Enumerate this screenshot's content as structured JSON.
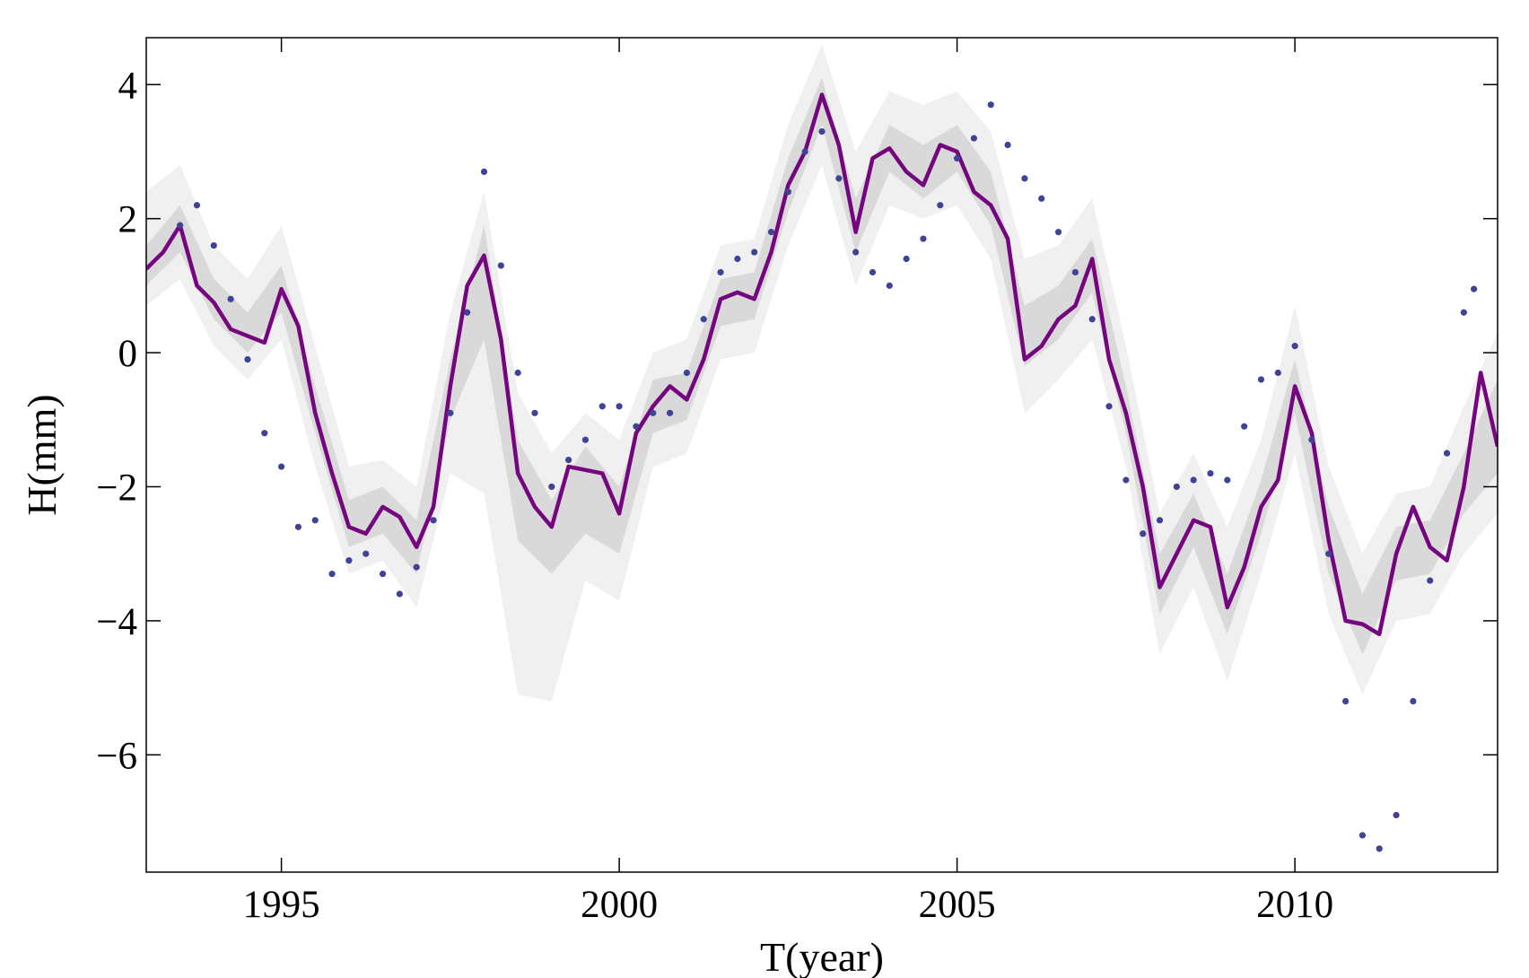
{
  "chart_data": {
    "type": "line",
    "xlabel": "T(year)",
    "ylabel": "H(mm)",
    "xlim": [
      1993,
      2013
    ],
    "ylim": [
      -7.75,
      4.7
    ],
    "xticks": [
      1995,
      2000,
      2005,
      2010
    ],
    "yticks": [
      {
        "value": 4,
        "label": "4"
      },
      {
        "value": 2,
        "label": "2"
      },
      0,
      {
        "value": -2,
        "label": "−2"
      },
      {
        "value": -4,
        "label": "−4"
      },
      {
        "value": -6,
        "label": "−6"
      }
    ],
    "bands": {
      "x": [
        1993,
        1993.5,
        1994,
        1994.5,
        1995,
        1995.5,
        1996,
        1996.5,
        1997,
        1997.5,
        1998,
        1998.5,
        1999,
        1999.5,
        2000,
        2000.5,
        2001,
        2001.5,
        2002,
        2002.5,
        2003,
        2003.5,
        2004,
        2004.5,
        2005,
        2005.5,
        2006,
        2006.5,
        2007,
        2007.5,
        2008,
        2008.5,
        2009,
        2009.5,
        2010,
        2010.5,
        2011,
        2011.5,
        2012,
        2012.5,
        2013
      ],
      "outer": {
        "color": "#f0f0f0",
        "lower": [
          0.7,
          1.1,
          0.1,
          -0.4,
          0.2,
          -1.7,
          -3.3,
          -3.1,
          -3.8,
          -1.8,
          -2.1,
          -5.1,
          -5.2,
          -3.4,
          -3.7,
          -1.7,
          -1.5,
          -0.1,
          0.0,
          1.6,
          2.8,
          1.0,
          2.2,
          2.0,
          2.2,
          1.4,
          -0.9,
          -0.4,
          0.2,
          -1.7,
          -4.5,
          -3.5,
          -4.9,
          -3.3,
          -1.5,
          -3.9,
          -5.1,
          -4.0,
          -3.9,
          -3.0,
          -2.4
        ],
        "upper": [
          2.4,
          2.8,
          1.6,
          1.1,
          1.9,
          0.1,
          -1.7,
          -1.6,
          -2.0,
          0.6,
          2.4,
          -0.6,
          -1.5,
          -0.9,
          -1.3,
          0.0,
          0.2,
          1.6,
          1.7,
          3.4,
          4.6,
          3.0,
          3.9,
          3.7,
          3.9,
          3.3,
          1.4,
          1.6,
          2.3,
          0.1,
          -2.4,
          -1.5,
          -2.6,
          -1.3,
          0.7,
          -1.7,
          -3.0,
          -2.1,
          -2.0,
          -0.8,
          0.3
        ]
      },
      "inner": {
        "color": "#d9d9d9",
        "lower": [
          1.0,
          1.5,
          0.5,
          0.0,
          0.6,
          -1.2,
          -2.9,
          -2.7,
          -3.3,
          -1.0,
          0.2,
          -2.8,
          -3.3,
          -2.7,
          -3.0,
          -1.2,
          -1.0,
          0.4,
          0.5,
          2.1,
          3.4,
          1.5,
          2.7,
          2.3,
          2.7,
          1.9,
          -0.2,
          0.2,
          0.9,
          -1.2,
          -3.9,
          -2.9,
          -4.2,
          -2.7,
          -0.9,
          -3.3,
          -4.5,
          -3.4,
          -3.3,
          -2.4,
          -1.8
        ],
        "upper": [
          1.6,
          2.2,
          1.1,
          0.6,
          1.3,
          -0.5,
          -2.2,
          -2.0,
          -2.5,
          -0.1,
          1.9,
          -1.3,
          -2.2,
          -1.4,
          -2.0,
          -0.4,
          -0.3,
          1.1,
          1.2,
          2.9,
          4.1,
          2.3,
          3.4,
          3.1,
          3.4,
          2.7,
          0.7,
          1.0,
          1.7,
          -0.5,
          -3.0,
          -2.1,
          -3.3,
          -1.9,
          -0.1,
          -2.3,
          -3.6,
          -2.6,
          -2.5,
          -1.5,
          -0.4
        ]
      }
    },
    "series": [
      {
        "style": "line",
        "color": "#75057f",
        "x": [
          1993,
          1993.25,
          1993.5,
          1993.75,
          1994,
          1994.25,
          1994.5,
          1994.75,
          1995,
          1995.25,
          1995.5,
          1995.75,
          1996,
          1996.25,
          1996.5,
          1996.75,
          1997,
          1997.25,
          1997.5,
          1997.75,
          1998,
          1998.25,
          1998.5,
          1998.75,
          1999,
          1999.25,
          1999.5,
          1999.75,
          2000,
          2000.25,
          2000.5,
          2000.75,
          2001,
          2001.25,
          2001.5,
          2001.75,
          2002,
          2002.25,
          2002.5,
          2002.75,
          2003,
          2003.25,
          2003.5,
          2003.75,
          2004,
          2004.25,
          2004.5,
          2004.75,
          2005,
          2005.25,
          2005.5,
          2005.75,
          2006,
          2006.25,
          2006.5,
          2006.75,
          2007,
          2007.25,
          2007.5,
          2007.75,
          2008,
          2008.25,
          2008.5,
          2008.75,
          2009,
          2009.25,
          2009.5,
          2009.75,
          2010,
          2010.25,
          2010.5,
          2010.75,
          2011,
          2011.25,
          2011.5,
          2011.75,
          2012,
          2012.25,
          2012.5,
          2012.75,
          2013
        ],
        "values": [
          1.25,
          1.5,
          1.9,
          1.0,
          0.75,
          0.35,
          0.25,
          0.15,
          0.95,
          0.4,
          -0.9,
          -1.8,
          -2.6,
          -2.7,
          -2.3,
          -2.45,
          -2.9,
          -2.3,
          -0.5,
          1.0,
          1.45,
          0.2,
          -1.8,
          -2.3,
          -2.6,
          -1.7,
          -1.75,
          -1.8,
          -2.4,
          -1.2,
          -0.8,
          -0.5,
          -0.7,
          -0.1,
          0.8,
          0.9,
          0.8,
          1.5,
          2.5,
          3.0,
          3.85,
          3.1,
          1.8,
          2.9,
          3.05,
          2.7,
          2.5,
          3.1,
          3.0,
          2.4,
          2.2,
          1.7,
          -0.1,
          0.1,
          0.5,
          0.7,
          1.4,
          -0.1,
          -0.9,
          -2.0,
          -3.5,
          -3.0,
          -2.5,
          -2.6,
          -3.8,
          -3.2,
          -2.3,
          -1.9,
          -0.5,
          -1.2,
          -2.8,
          -4.0,
          -4.05,
          -4.2,
          -3.0,
          -2.3,
          -2.9,
          -3.1,
          -2.0,
          -0.3,
          -1.4
        ]
      },
      {
        "style": "dots",
        "color": "#3e4396",
        "x": [
          1993.5,
          1993.75,
          1994,
          1994.25,
          1994.5,
          1994.75,
          1995,
          1995.25,
          1995.5,
          1995.75,
          1996,
          1996.25,
          1996.5,
          1996.75,
          1997,
          1997.25,
          1997.5,
          1997.75,
          1998,
          1998.25,
          1998.5,
          1998.75,
          1999,
          1999.25,
          1999.5,
          1999.75,
          2000,
          2000.25,
          2000.5,
          2000.75,
          2001,
          2001.25,
          2001.5,
          2001.75,
          2002,
          2002.25,
          2002.5,
          2002.75,
          2003,
          2003.25,
          2003.5,
          2003.75,
          2004,
          2004.25,
          2004.5,
          2004.75,
          2005,
          2005.25,
          2005.5,
          2005.75,
          2006,
          2006.25,
          2006.5,
          2006.75,
          2007,
          2007.25,
          2007.5,
          2007.75,
          2008,
          2008.25,
          2008.5,
          2008.75,
          2009,
          2009.25,
          2009.5,
          2009.75,
          2010,
          2010.25,
          2010.5,
          2010.75,
          2011,
          2011.25,
          2011.5,
          2011.75,
          2012,
          2012.25,
          2012.5,
          2012.65
        ],
        "values": [
          1.9,
          2.2,
          1.6,
          0.8,
          -0.1,
          -1.2,
          -1.7,
          -2.6,
          -2.5,
          -3.3,
          -3.1,
          -3.0,
          -3.3,
          -3.6,
          -3.2,
          -2.5,
          -0.9,
          0.6,
          2.7,
          1.3,
          -0.3,
          -0.9,
          -2.0,
          -1.6,
          -1.3,
          -0.8,
          -0.8,
          -1.1,
          -0.9,
          -0.9,
          -0.3,
          0.5,
          1.2,
          1.4,
          1.5,
          1.8,
          2.4,
          3.0,
          3.3,
          2.6,
          1.5,
          1.2,
          1.0,
          1.4,
          1.7,
          2.2,
          2.9,
          3.2,
          3.7,
          3.1,
          2.6,
          2.3,
          1.8,
          1.2,
          0.5,
          -0.8,
          -1.9,
          -2.7,
          -2.5,
          -2.0,
          -1.9,
          -1.8,
          -1.9,
          -1.1,
          -0.4,
          -0.3,
          0.1,
          -1.3,
          -3.0,
          -5.2,
          -7.2,
          -7.4,
          -6.9,
          -5.2,
          -3.4,
          -1.5,
          0.6,
          0.95
        ]
      }
    ]
  }
}
